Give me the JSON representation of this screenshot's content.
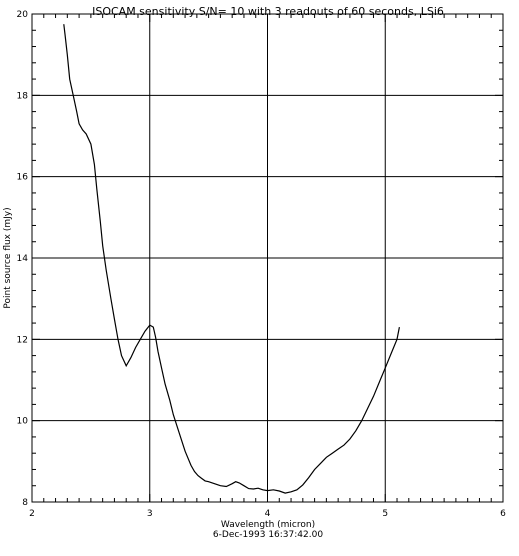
{
  "chart_data": {
    "type": "line",
    "title": "ISOCAM sensitivity S/N= 10 with 3 readouts of 60 seconds, LSi6",
    "xlabel": "Wavelength (micron)",
    "ylabel": "Point source flux (mJy)",
    "footer": "6-Dec-1993 16:37:42.00",
    "xlim": [
      2,
      6
    ],
    "ylim": [
      8,
      20
    ],
    "grid": true,
    "x_major_ticks": [
      2,
      3,
      4,
      5,
      6
    ],
    "x_tick_labels": [
      "2",
      "3",
      "4",
      "5",
      "6"
    ],
    "y_major_ticks": [
      8,
      10,
      12,
      14,
      16,
      18,
      20
    ],
    "y_tick_labels": [
      "8",
      "10",
      "12",
      "14",
      "16",
      "18",
      "20"
    ],
    "grid_x": [
      3,
      4,
      5
    ],
    "grid_y": [
      10,
      12,
      14,
      16,
      18
    ],
    "series": [
      {
        "x": [
          2.27,
          2.28,
          2.3,
          2.32,
          2.35,
          2.38,
          2.4,
          2.43,
          2.46,
          2.5,
          2.53,
          2.55,
          2.58,
          2.6,
          2.63,
          2.67,
          2.7,
          2.73,
          2.76,
          2.8,
          2.84,
          2.88,
          2.92,
          2.96,
          3.0,
          3.03,
          3.05,
          3.07,
          3.1,
          3.13,
          3.17,
          3.2,
          3.25,
          3.3,
          3.35,
          3.38,
          3.41,
          3.44,
          3.47,
          3.5,
          3.55,
          3.6,
          3.65,
          3.7,
          3.73,
          3.76,
          3.8,
          3.84,
          3.88,
          3.92,
          3.96,
          4.0,
          4.05,
          4.1,
          4.15,
          4.2,
          4.25,
          4.3,
          4.35,
          4.4,
          4.45,
          4.5,
          4.55,
          4.6,
          4.65,
          4.7,
          4.75,
          4.8,
          4.85,
          4.9,
          4.95,
          5.0,
          5.05,
          5.1,
          5.12
        ],
        "y": [
          19.75,
          19.5,
          19.0,
          18.4,
          18.0,
          17.6,
          17.3,
          17.15,
          17.05,
          16.8,
          16.3,
          15.7,
          14.9,
          14.3,
          13.7,
          13.0,
          12.5,
          12.0,
          11.6,
          11.35,
          11.55,
          11.8,
          12.0,
          12.2,
          12.35,
          12.3,
          12.05,
          11.7,
          11.3,
          10.9,
          10.5,
          10.15,
          9.7,
          9.25,
          8.9,
          8.75,
          8.65,
          8.58,
          8.52,
          8.5,
          8.45,
          8.4,
          8.38,
          8.45,
          8.5,
          8.47,
          8.4,
          8.33,
          8.32,
          8.34,
          8.3,
          8.28,
          8.3,
          8.27,
          8.22,
          8.25,
          8.3,
          8.42,
          8.6,
          8.8,
          8.95,
          9.1,
          9.2,
          9.3,
          9.4,
          9.55,
          9.75,
          10.0,
          10.3,
          10.6,
          10.95,
          11.3,
          11.65,
          12.0,
          12.3
        ]
      }
    ]
  }
}
